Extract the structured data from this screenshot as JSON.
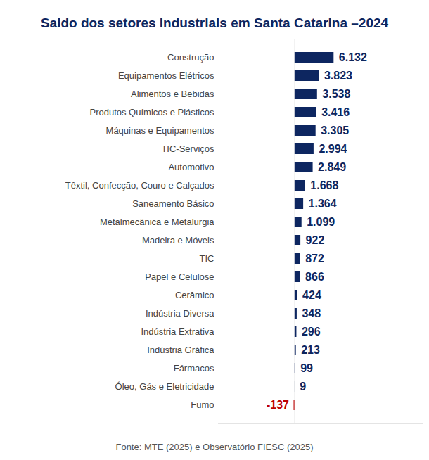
{
  "chart_data": {
    "type": "bar",
    "title": "Saldo dos setores industriais em Santa Catarina –2024",
    "caption": "Fonte: MTE (2025) e Observatório FIESC (2025)",
    "orientation": "horizontal",
    "data_labels": true,
    "tick_labels": "y",
    "grid": false,
    "xlim": [
      -12000,
      20000
    ],
    "categories": [
      "Construção",
      "Equipamentos Elétricos",
      "Alimentos e Bebidas",
      "Produtos Químicos e Plásticos",
      "Máquinas e Equipamentos",
      "TIC-Serviços",
      "Automotivo",
      "Têxtil, Confecção, Couro e Calçados",
      "Saneamento Básico",
      "Metalmecânica e Metalurgia",
      "Madeira e Móveis",
      "TIC",
      "Papel e Celulose",
      "Cerâmico",
      "Indústria Diversa",
      "Indústria Extrativa",
      "Indústria Gráfica",
      "Fármacos",
      "Óleo, Gás e Eletricidade",
      "Fumo"
    ],
    "values": [
      6132,
      3823,
      3538,
      3416,
      3305,
      2994,
      2849,
      1668,
      1364,
      1099,
      922,
      872,
      866,
      424,
      348,
      296,
      213,
      99,
      9,
      -137
    ],
    "value_labels": [
      "6.132",
      "3.823",
      "3.538",
      "3.416",
      "3.305",
      "2.994",
      "2.849",
      "1.668",
      "1.364",
      "1.099",
      "922",
      "872",
      "866",
      "424",
      "348",
      "296",
      "213",
      "99",
      "9",
      "-137"
    ],
    "colors": [
      "#0d2660",
      "#0d2660",
      "#0d2660",
      "#0d2660",
      "#0d2660",
      "#0d2660",
      "#0d2660",
      "#0d2660",
      "#0d2660",
      "#0d2660",
      "#0d2660",
      "#0d2660",
      "#0d2660",
      "#0d2660",
      "#0d2660",
      "#0d2660",
      "#0d2660",
      "#0d2660",
      "#0d2660",
      "#c00000"
    ]
  }
}
